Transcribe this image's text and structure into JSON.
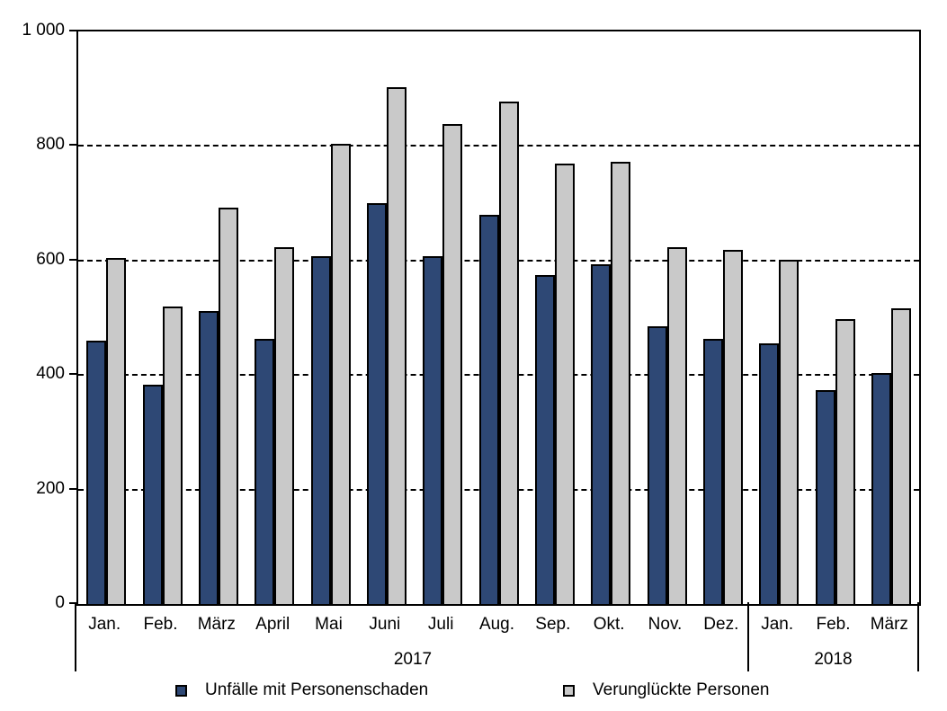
{
  "chart_data": {
    "type": "bar",
    "title": "",
    "xlabel": "",
    "ylabel": "",
    "ylim": [
      0,
      1000
    ],
    "yticks": [
      0,
      200,
      400,
      600,
      800,
      1000
    ],
    "ytick_labels": [
      "0",
      "200",
      "400",
      "600",
      "800",
      "1 000"
    ],
    "grid": "horizontal dashed gridlines at 200, 400, 600, 800; solid rectangular frame",
    "legend_position": "bottom",
    "categories": [
      "Jan.",
      "Feb.",
      "März",
      "April",
      "Mai",
      "Juni",
      "Juli",
      "Aug.",
      "Sep.",
      "Okt.",
      "Nov.",
      "Dez.",
      "Jan.",
      "Feb.",
      "März"
    ],
    "year_groups": [
      {
        "label": "2017",
        "span": [
          0,
          12
        ]
      },
      {
        "label": "2018",
        "span": [
          12,
          15
        ]
      }
    ],
    "series": [
      {
        "name": "Unfälle mit Personenschaden",
        "color": "#2E4875",
        "values": [
          460,
          383,
          512,
          463,
          608,
          700,
          608,
          680,
          575,
          593,
          485,
          463,
          455,
          373,
          403
        ]
      },
      {
        "name": "Verunglückte Personen",
        "color": "#C9C9C9",
        "values": [
          605,
          520,
          693,
          623,
          803,
          903,
          838,
          878,
          770,
          772,
          623,
          618,
          602,
          497,
          517
        ]
      }
    ],
    "colors": {
      "axis": "#000000",
      "text": "#000000",
      "background": "#FFFFFF",
      "bar_border": "#000000"
    }
  },
  "legend": {
    "items": [
      {
        "label": "Unfälle mit Personenschaden"
      },
      {
        "label": "Verunglückte Personen"
      }
    ]
  }
}
